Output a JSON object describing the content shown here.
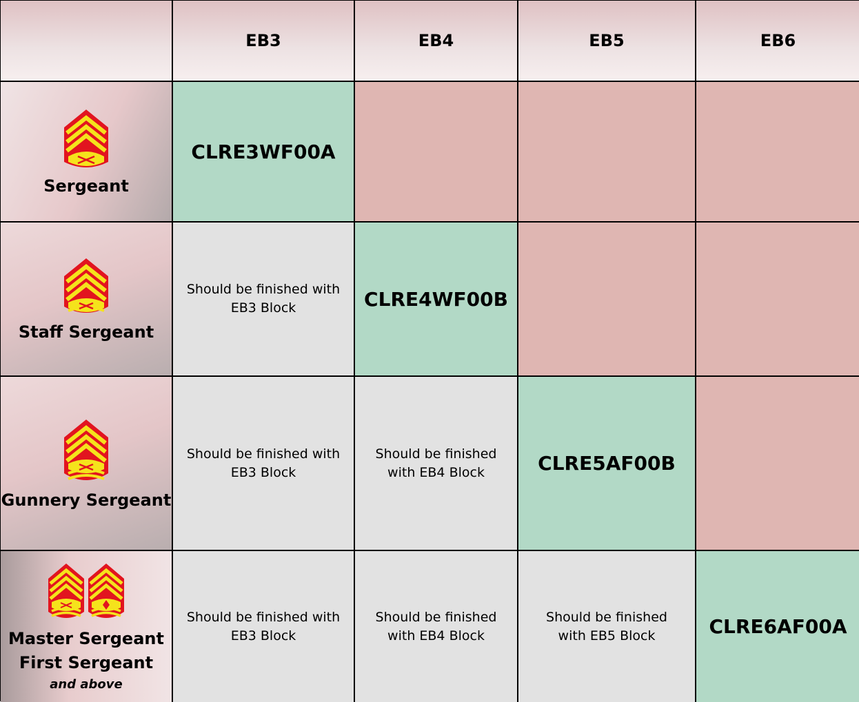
{
  "header": {
    "columns": [
      "EB3",
      "EB4",
      "EB5",
      "EB6"
    ]
  },
  "ranks": [
    {
      "name": "Sergeant",
      "insignia": [
        "sergeant-chevron-icon"
      ]
    },
    {
      "name": "Staff Sergeant",
      "insignia": [
        "staff-sergeant-chevron-icon"
      ]
    },
    {
      "name": "Gunnery Sergeant",
      "insignia": [
        "gunnery-sergeant-chevron-icon"
      ]
    },
    {
      "name": "Master Sergeant",
      "name2": "First Sergeant",
      "sub": "and above",
      "insignia": [
        "master-sergeant-chevron-icon",
        "first-sergeant-chevron-icon"
      ]
    }
  ],
  "cells": {
    "sergeant_eb3": "CLRE3WF00A",
    "staff_eb3": "Should be finished with EB3 Block",
    "staff_eb4": "CLRE4WF00B",
    "gunnery_eb3": "Should be finished with EB3 Block",
    "gunnery_eb4": "Should be finished with EB4 Block",
    "gunnery_eb5": "CLRE5AF00B",
    "master_eb3": "Should be finished with EB3 Block",
    "master_eb4": "Should be finished with EB4 Block",
    "master_eb5": "Should be finished with EB5 Block",
    "master_eb6": "CLRE6AF00A"
  },
  "colors": {
    "course_cell": "#b2d9c6",
    "not_applicable_cell": "#dfb6b2",
    "completed_cell": "#e2e2e2",
    "insignia_red": "#e2141f",
    "insignia_gold": "#f5e31c"
  }
}
